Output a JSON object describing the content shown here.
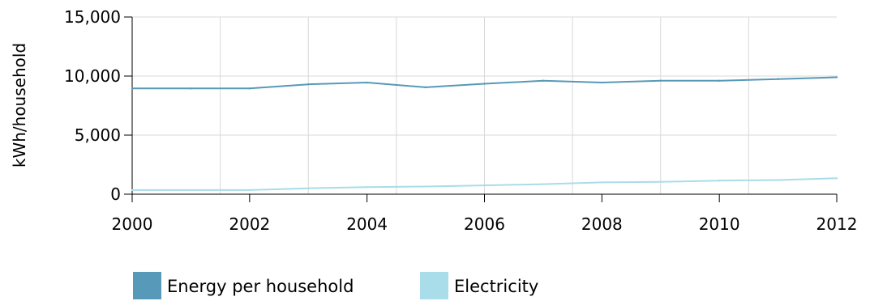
{
  "chart_data": {
    "type": "line",
    "ylabel": "kWh/household",
    "xlabel": "",
    "xlim": [
      2000,
      2012
    ],
    "ylim": [
      0,
      15000
    ],
    "x_ticks": [
      2000,
      2002,
      2004,
      2006,
      2008,
      2010,
      2012
    ],
    "x_tick_labels": [
      "2000",
      "2002",
      "2004",
      "2006",
      "2008",
      "2010",
      "2012"
    ],
    "y_ticks": [
      0,
      5000,
      10000,
      15000
    ],
    "y_tick_labels": [
      "0",
      "5,000",
      "10,000",
      "15,000"
    ],
    "grid": true,
    "legend_position": "bottom",
    "series": [
      {
        "name": "Energy per household",
        "color": "#5799b8",
        "x": [
          2000,
          2001,
          2002,
          2003,
          2004,
          2005,
          2006,
          2007,
          2008,
          2009,
          2010,
          2011,
          2012
        ],
        "values": [
          8950,
          8950,
          8950,
          9300,
          9450,
          9050,
          9350,
          9600,
          9450,
          9600,
          9600,
          9750,
          9900
        ]
      },
      {
        "name": "Electricity",
        "color": "#a8dde9",
        "x": [
          2000,
          2001,
          2002,
          2003,
          2004,
          2005,
          2006,
          2007,
          2008,
          2009,
          2010,
          2011,
          2012
        ],
        "values": [
          350,
          350,
          350,
          500,
          600,
          650,
          750,
          850,
          1000,
          1050,
          1150,
          1200,
          1350
        ]
      }
    ]
  }
}
